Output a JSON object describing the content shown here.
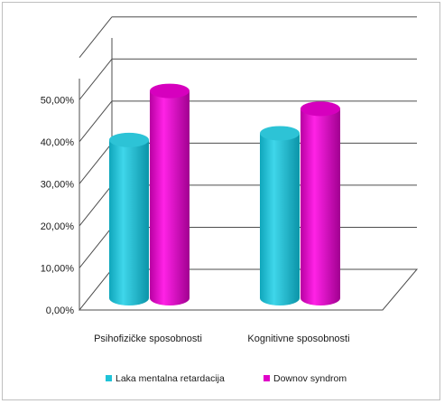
{
  "chart_data": {
    "type": "bar",
    "title": "",
    "xlabel": "",
    "ylabel": "",
    "categories": [
      "Psihofizičke sposobnosti",
      "Kognitivne sposobnosti"
    ],
    "series": [
      {
        "name": "Laka mentalna retardacija",
        "values": [
          35.5,
          37.0
        ],
        "color": "#1fc3d8"
      },
      {
        "name": "Downov syndrom",
        "values": [
          46.5,
          42.5
        ],
        "color": "#e000c8"
      }
    ],
    "ylim": [
      0,
      50
    ],
    "yticks": [
      "0,00%",
      "10,00%",
      "20,00%",
      "30,00%",
      "40,00%",
      "50,00%"
    ],
    "grid": true,
    "style": "3d-cylinder",
    "legend": "bottom"
  }
}
